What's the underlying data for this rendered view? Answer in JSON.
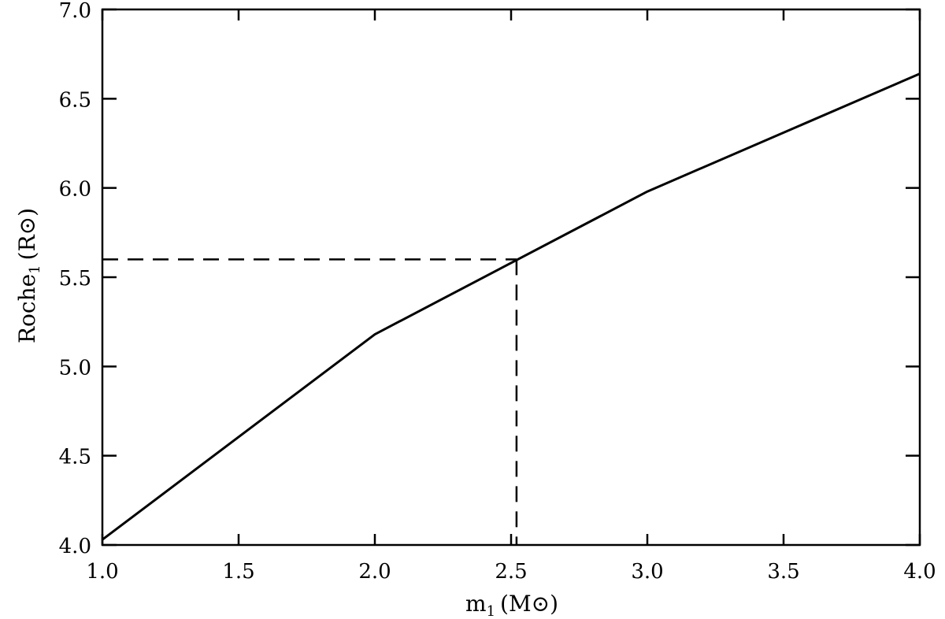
{
  "chart_data": {
    "type": "line",
    "title": "",
    "xlabel": {
      "main": "m",
      "sub": "1",
      "unit": "(M⊙)"
    },
    "ylabel": {
      "main": "Roche",
      "sub": "1",
      "unit": "(R⊙)"
    },
    "xlim": [
      1.0,
      4.0
    ],
    "ylim": [
      4.0,
      7.0
    ],
    "xticks": [
      "1.0",
      "1.5",
      "2.0",
      "2.5",
      "3.0",
      "3.5",
      "4.0"
    ],
    "yticks": [
      "4.0",
      "4.5",
      "5.0",
      "5.5",
      "6.0",
      "6.5",
      "7.0"
    ],
    "grid": false,
    "series": [
      {
        "style": "solid",
        "x": [
          1.0,
          2.0,
          3.0,
          4.0
        ],
        "y": [
          4.03,
          5.18,
          5.98,
          6.64
        ]
      }
    ],
    "annotations": [
      {
        "type": "dashed-guide",
        "x": 2.52,
        "y": 5.6
      }
    ]
  }
}
